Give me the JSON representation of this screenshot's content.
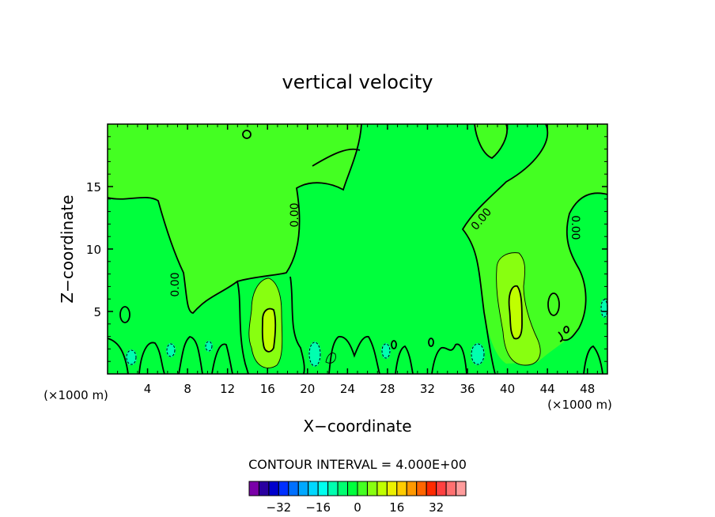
{
  "chart_data": {
    "type": "contour",
    "title": "vertical velocity",
    "xlabel": "X−coordinate",
    "ylabel": "Z−coordinate",
    "x_units_left": "(×1000 m)",
    "x_units_right": "(×1000 m)",
    "xlim": [
      0,
      50
    ],
    "ylim": [
      0,
      20
    ],
    "x_ticks": [
      "4",
      "8",
      "12",
      "16",
      "20",
      "24",
      "28",
      "32",
      "36",
      "40",
      "44",
      "48"
    ],
    "y_ticks": [
      "5",
      "10",
      "15"
    ],
    "contour_labels": [
      "0.00",
      "0.00",
      "0.00",
      "0.00"
    ],
    "contour_interval_text": "CONTOUR INTERVAL = 4.000E+00",
    "colorbar_labels": [
      "−32",
      "−16",
      "0",
      "16",
      "32"
    ],
    "colorbar_colors": [
      "#7a00a8",
      "#2a00a0",
      "#0000cc",
      "#0030ff",
      "#0070ff",
      "#00a8ff",
      "#00d8ff",
      "#00ffee",
      "#00ffb0",
      "#00ff70",
      "#00ff3c",
      "#44ff22",
      "#88ff10",
      "#c0ff00",
      "#ecf000",
      "#ffcc00",
      "#ff9900",
      "#ff6600",
      "#ff2a00",
      "#ff4040",
      "#ff7070",
      "#ff9c9c"
    ],
    "field_colors": {
      "background": "#00ff3c",
      "weak_positive": "#44ff22",
      "moderate_positive": "#88ff10",
      "weak_negative": "#00ffb0"
    }
  }
}
